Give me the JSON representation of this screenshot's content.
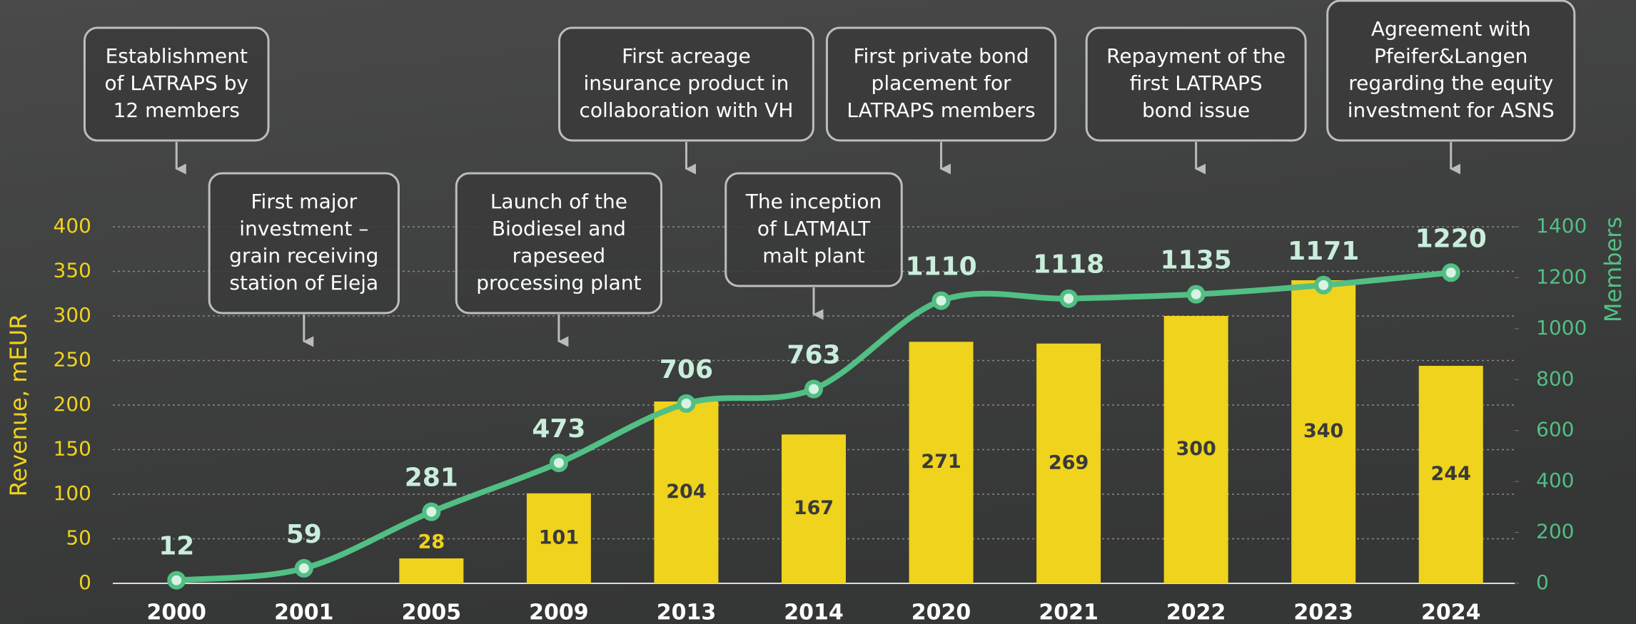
{
  "chart_data": {
    "type": "bar-line",
    "categories": [
      "2000",
      "2001",
      "2005",
      "2009",
      "2013",
      "2014",
      "2020",
      "2021",
      "2022",
      "2023",
      "2024"
    ],
    "series": [
      {
        "name": "Revenue, mEUR",
        "type": "bar",
        "color": "#efd31c",
        "values": [
          null,
          null,
          28,
          101,
          204,
          167,
          271,
          269,
          300,
          340,
          244
        ]
      },
      {
        "name": "Members",
        "type": "line",
        "axis": "y2",
        "color": "#52bf84",
        "values": [
          12,
          59,
          281,
          473,
          706,
          763,
          1110,
          1118,
          1135,
          1171,
          1220
        ]
      }
    ],
    "ylabel": "Revenue, mEUR",
    "y2label": "Members",
    "ylim": [
      0,
      400
    ],
    "yticks": [
      0,
      50,
      100,
      150,
      200,
      250,
      300,
      350,
      400
    ],
    "y2lim": [
      0,
      1400
    ],
    "y2ticks": [
      0,
      200,
      400,
      600,
      800,
      1000,
      1200,
      1400
    ],
    "grid": true,
    "annotations": [
      {
        "x": "2000",
        "text": [
          "Establishment",
          "of LATRAPS by",
          "12 members"
        ]
      },
      {
        "x": "2001",
        "text": [
          "First major",
          "investment –",
          "grain receiving",
          "station of Eleja"
        ]
      },
      {
        "x": "2009",
        "text": [
          "Launch of the",
          "Biodiesel and",
          "rapeseed",
          "processing plant"
        ]
      },
      {
        "x": "2013",
        "text": [
          "First acreage",
          "insurance product in",
          "collaboration with VH"
        ]
      },
      {
        "x": "2014",
        "text": [
          "The inception",
          "of LATMALT",
          "malt plant"
        ]
      },
      {
        "x": "2020",
        "text": [
          "First private bond",
          "placement for",
          "LATRAPS members"
        ]
      },
      {
        "x": "2022",
        "text": [
          "Repayment of the",
          "first LATRAPS",
          "bond issue"
        ]
      },
      {
        "x": "2024",
        "text": [
          "Agreement with",
          "Pfeifer&Langen",
          "regarding the equity",
          "investment for ASNS"
        ]
      }
    ]
  }
}
